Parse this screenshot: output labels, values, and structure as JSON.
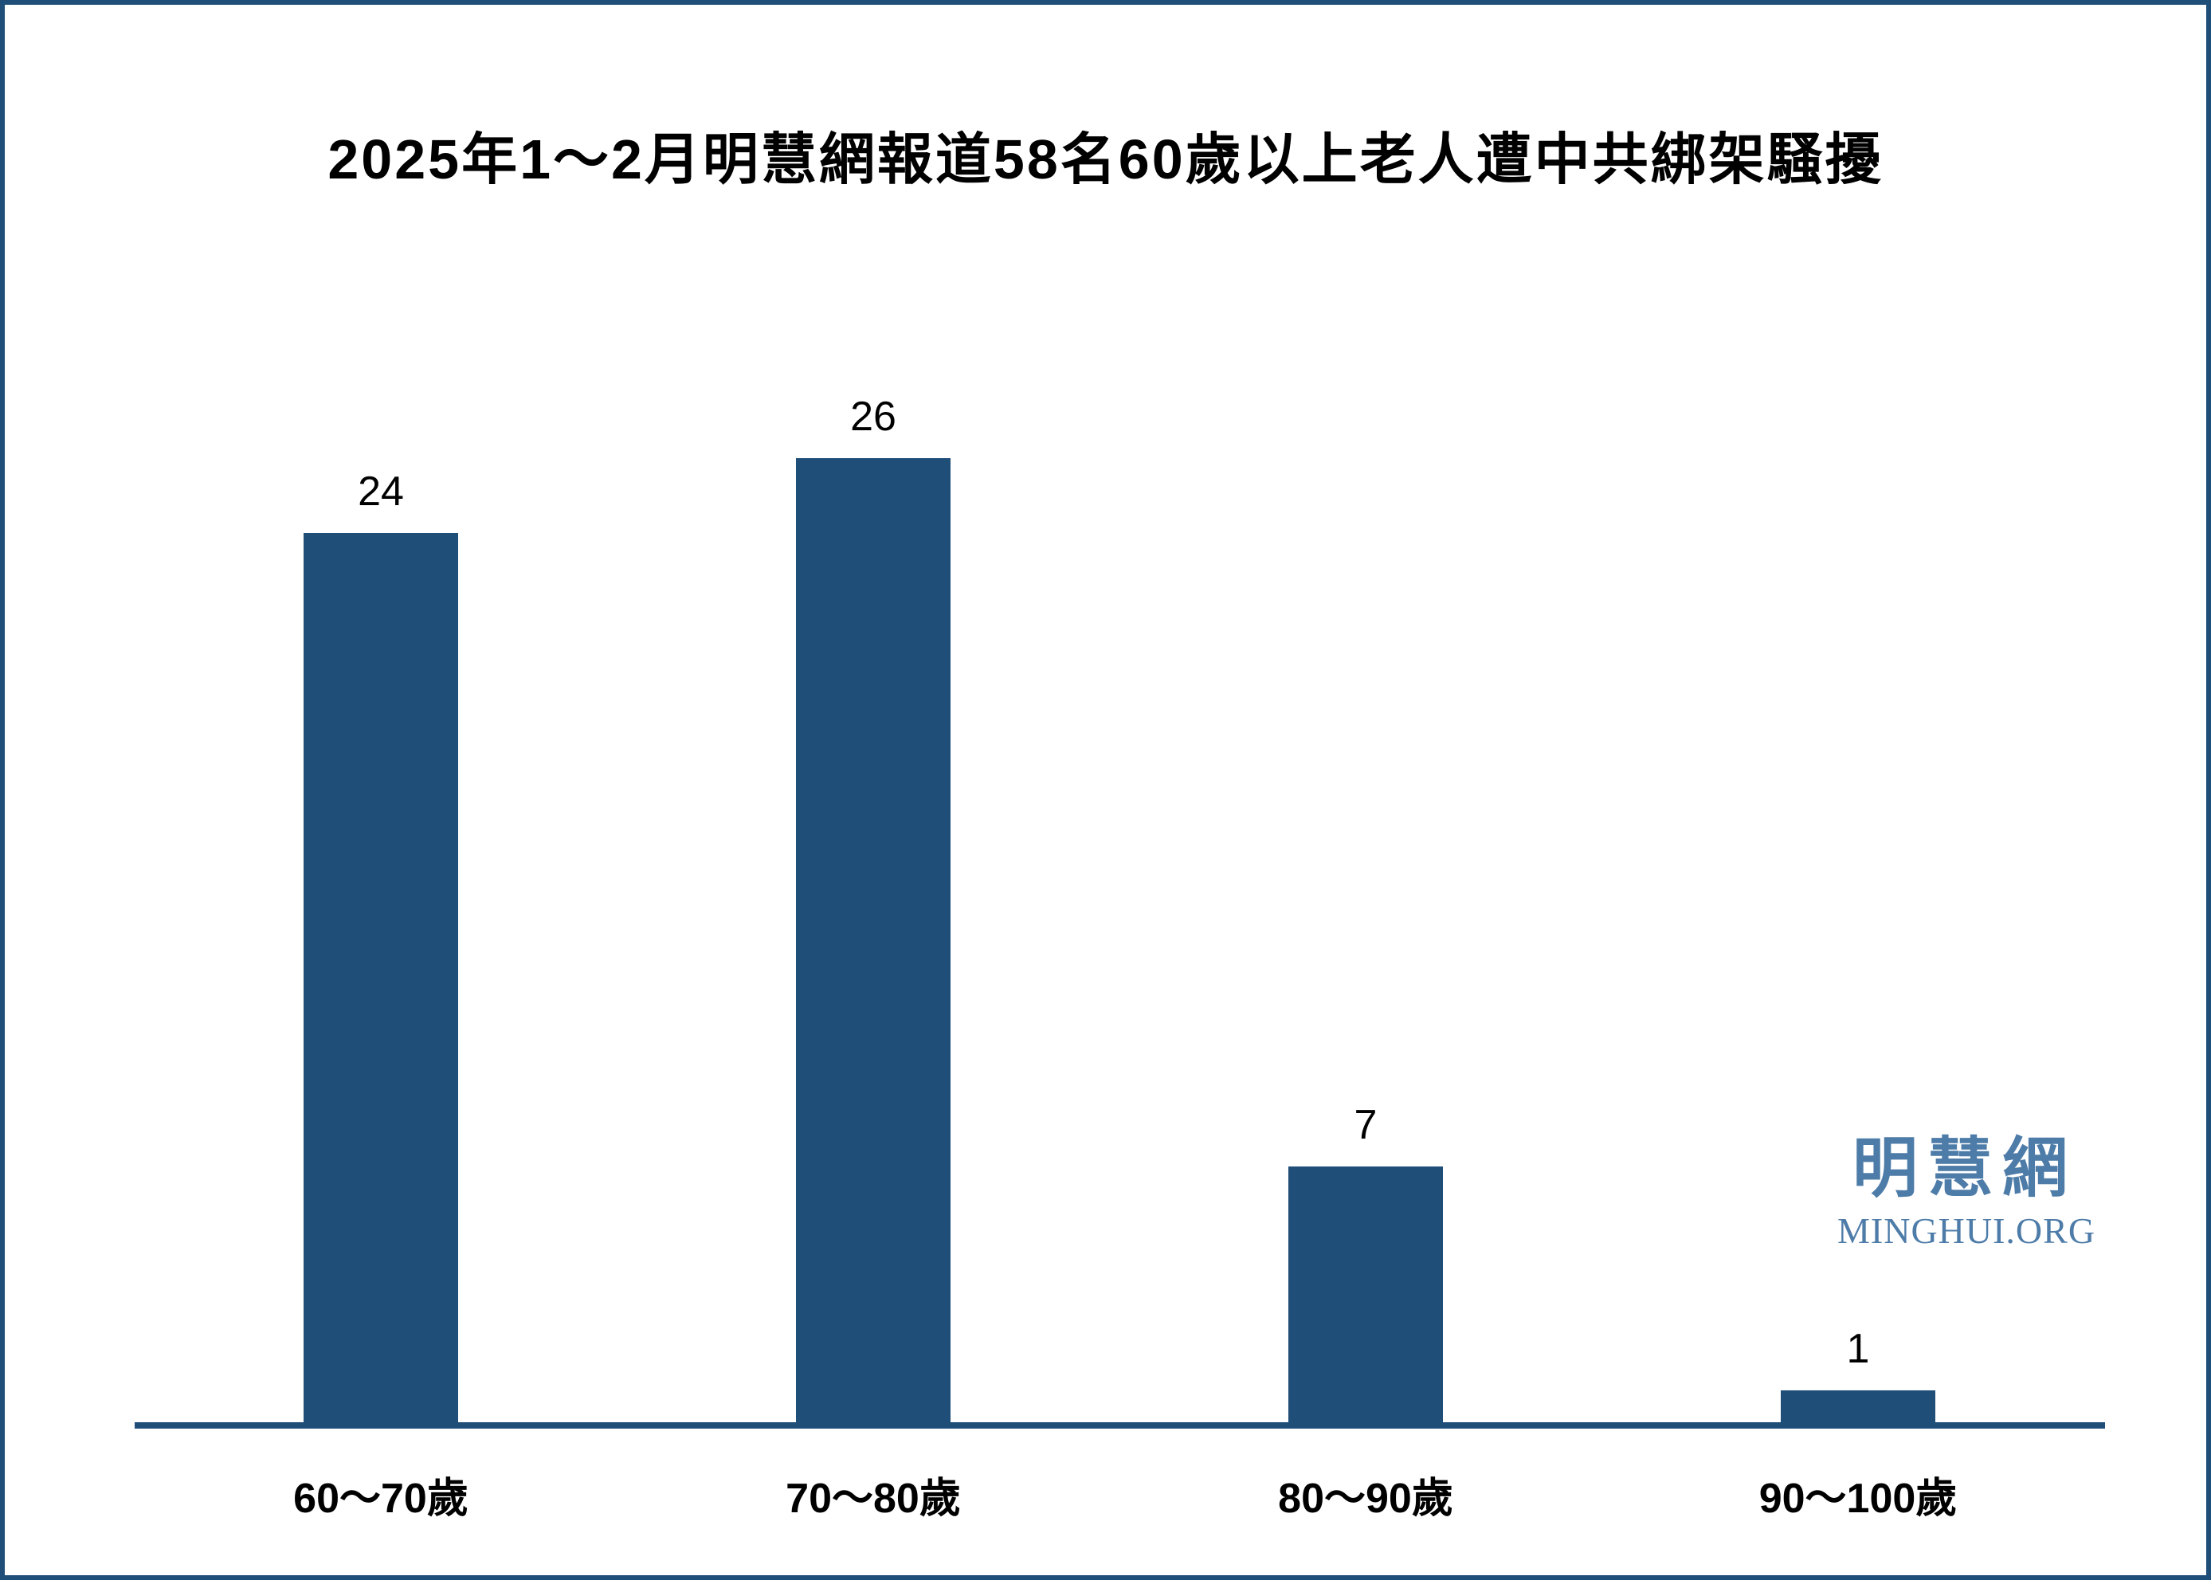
{
  "page": {
    "background": "#FFFFFF",
    "border_color": "#1F4E79"
  },
  "chart_data": {
    "type": "bar",
    "title": "2025年1～2月明慧網報道58名60歲以上老人遭中共綁架騷擾",
    "categories": [
      "60～70歲",
      "70～80歲",
      "80～90歲",
      "90～100歲"
    ],
    "values": [
      24,
      26,
      7,
      1
    ],
    "value_labels_shown": true,
    "xlabel": "",
    "ylabel": "",
    "ylim": [
      0,
      26
    ],
    "grid": false,
    "legend": false,
    "bar_color": "#1F4E79",
    "axis_color": "#1F4E79",
    "text_color": "#000000"
  },
  "logo": {
    "cjk": "明慧網",
    "latin": "MINGHUI.ORG",
    "color": "#4E7CA8"
  }
}
